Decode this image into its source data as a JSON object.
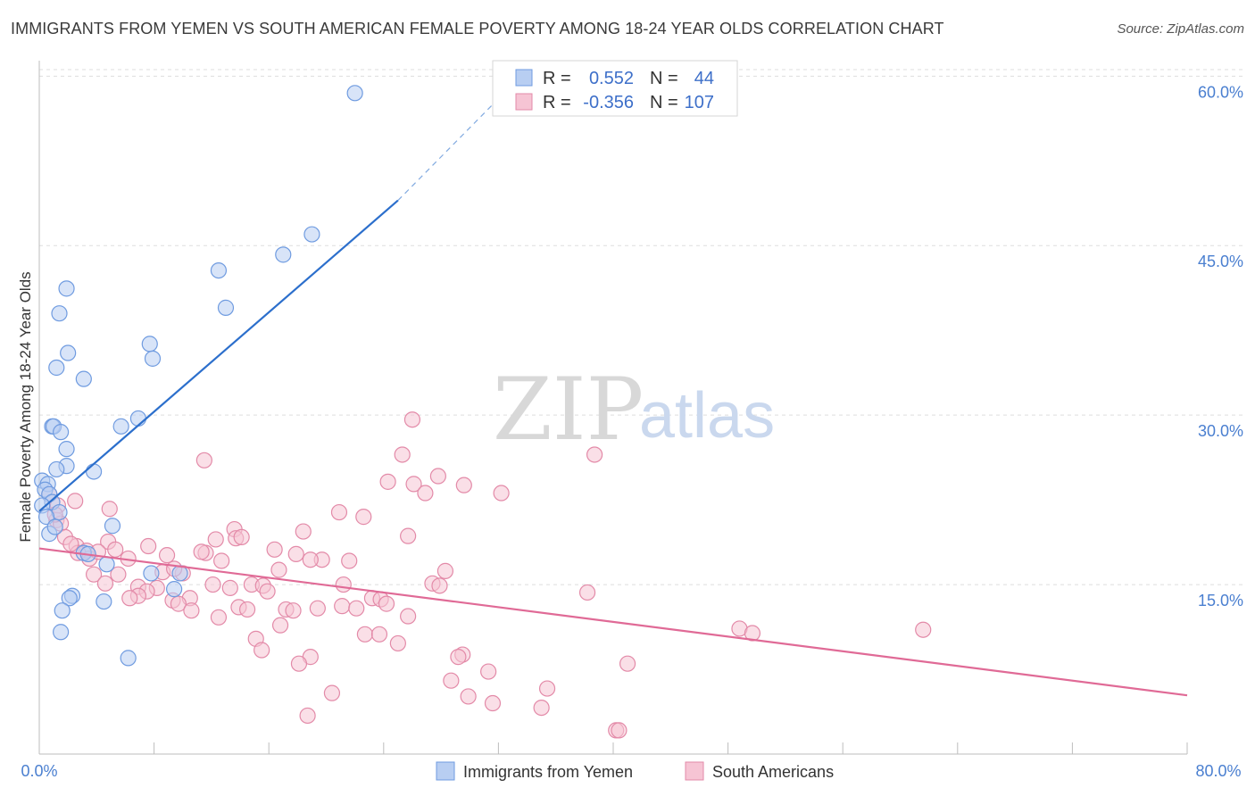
{
  "title": "IMMIGRANTS FROM YEMEN VS SOUTH AMERICAN FEMALE POVERTY AMONG 18-24 YEAR OLDS CORRELATION CHART",
  "source": "Source: ZipAtlas.com",
  "watermark": {
    "zip": "ZIP",
    "atlas": "atlas"
  },
  "colors": {
    "blue": "#6f9be0",
    "blue_fill": "#b8cef2",
    "blue_line": "#2c6fcc",
    "pink": "#e38aa8",
    "pink_fill": "#f6c4d4",
    "pink_line": "#e06a96",
    "axis_text": "#4a7fd0",
    "grid": "#dddddd"
  },
  "stats": [
    {
      "r_label": "R =",
      "r_value": "0.552",
      "n_label": "N =",
      "n_value": "44"
    },
    {
      "r_label": "R =",
      "r_value": "-0.356",
      "n_label": "N =",
      "n_value": "107"
    }
  ],
  "chart_data": {
    "type": "scatter",
    "title": "IMMIGRANTS FROM YEMEN VS SOUTH AMERICAN FEMALE POVERTY AMONG 18-24 YEAR OLDS CORRELATION CHART",
    "xlabel": "",
    "ylabel": "Female Poverty Among 18-24 Year Olds",
    "xlim": [
      0,
      80
    ],
    "ylim": [
      0,
      62
    ],
    "x_tick_labels": [
      "0.0%",
      "80.0%"
    ],
    "y_ticks": [
      15,
      30,
      45,
      60
    ],
    "y_tick_labels": [
      "15.0%",
      "30.0%",
      "45.0%",
      "60.0%"
    ],
    "grid": true,
    "legend": "bottom-center",
    "series": [
      {
        "name": "Immigrants from Yemen",
        "trend": {
          "x0": 0,
          "y0": 21.5,
          "x1": 25,
          "y1": 49,
          "dash_to_x": 32,
          "dash_to_y": 58
        },
        "points": [
          [
            22,
            58.5
          ],
          [
            19,
            46
          ],
          [
            17,
            44.2
          ],
          [
            12.5,
            42.8
          ],
          [
            13,
            39.5
          ],
          [
            1.9,
            41.2
          ],
          [
            1.4,
            39
          ],
          [
            7.7,
            36.3
          ],
          [
            7.9,
            35
          ],
          [
            2,
            35.5
          ],
          [
            1.2,
            34.2
          ],
          [
            3.1,
            33.2
          ],
          [
            6.9,
            29.7
          ],
          [
            5.7,
            29
          ],
          [
            0.9,
            29
          ],
          [
            1,
            29
          ],
          [
            1.5,
            28.5
          ],
          [
            1.9,
            27
          ],
          [
            1.9,
            25.5
          ],
          [
            1.2,
            25.2
          ],
          [
            3.8,
            25
          ],
          [
            0.2,
            24.2
          ],
          [
            0.6,
            23.9
          ],
          [
            0.4,
            23.4
          ],
          [
            0.7,
            23
          ],
          [
            0.9,
            22.3
          ],
          [
            0.2,
            22
          ],
          [
            1.4,
            21.4
          ],
          [
            0.5,
            21
          ],
          [
            5.1,
            20.2
          ],
          [
            0.7,
            19.5
          ],
          [
            4.7,
            16.8
          ],
          [
            7.8,
            16
          ],
          [
            9.8,
            16
          ],
          [
            2.3,
            14
          ],
          [
            2.1,
            13.8
          ],
          [
            4.5,
            13.5
          ],
          [
            9.4,
            14.6
          ],
          [
            1.6,
            12.7
          ],
          [
            1.5,
            10.8
          ],
          [
            6.2,
            8.5
          ],
          [
            3.1,
            17.8
          ],
          [
            3.4,
            17.7
          ],
          [
            1.1,
            20.1
          ]
        ]
      },
      {
        "name": "South Americans",
        "trend": {
          "x0": 0,
          "y0": 18.2,
          "x1": 80,
          "y1": 5.2
        },
        "points": [
          [
            26,
            29.6
          ],
          [
            38.7,
            26.5
          ],
          [
            25.3,
            26.5
          ],
          [
            11.5,
            26
          ],
          [
            27.8,
            24.6
          ],
          [
            24.3,
            24.1
          ],
          [
            26.1,
            23.9
          ],
          [
            29.6,
            23.8
          ],
          [
            26.9,
            23.1
          ],
          [
            32.2,
            23.1
          ],
          [
            0.7,
            23
          ],
          [
            2.5,
            22.4
          ],
          [
            1.3,
            22
          ],
          [
            4.9,
            21.7
          ],
          [
            20.9,
            21.4
          ],
          [
            22.6,
            21
          ],
          [
            1.2,
            20.7
          ],
          [
            1.5,
            20.4
          ],
          [
            13.6,
            19.9
          ],
          [
            18.4,
            19.7
          ],
          [
            25.7,
            19.3
          ],
          [
            12.3,
            19
          ],
          [
            13.7,
            19.1
          ],
          [
            1.8,
            19.2
          ],
          [
            4.8,
            18.8
          ],
          [
            2.6,
            18.4
          ],
          [
            7.6,
            18.4
          ],
          [
            5.3,
            18.1
          ],
          [
            16.4,
            18.1
          ],
          [
            3.3,
            18
          ],
          [
            2.7,
            17.8
          ],
          [
            11.6,
            17.8
          ],
          [
            17.9,
            17.7
          ],
          [
            8.9,
            17.6
          ],
          [
            3.5,
            17.3
          ],
          [
            6.2,
            17.3
          ],
          [
            12.7,
            17.1
          ],
          [
            19.7,
            17.2
          ],
          [
            21.6,
            17.1
          ],
          [
            16.7,
            16.3
          ],
          [
            28.3,
            16.2
          ],
          [
            8.6,
            16.1
          ],
          [
            10,
            16
          ],
          [
            5.5,
            15.9
          ],
          [
            3.8,
            15.9
          ],
          [
            4.6,
            15.1
          ],
          [
            12.1,
            15
          ],
          [
            14.8,
            15
          ],
          [
            15.6,
            14.9
          ],
          [
            21.2,
            15
          ],
          [
            27.4,
            15.1
          ],
          [
            27.9,
            14.9
          ],
          [
            6.9,
            14.8
          ],
          [
            8.2,
            14.7
          ],
          [
            7.5,
            14.4
          ],
          [
            15.9,
            14.4
          ],
          [
            38.2,
            14.3
          ],
          [
            6.9,
            14
          ],
          [
            6.3,
            13.8
          ],
          [
            10.5,
            13.8
          ],
          [
            9.3,
            13.6
          ],
          [
            9.7,
            13.3
          ],
          [
            23.2,
            13.8
          ],
          [
            23.8,
            13.7
          ],
          [
            24.2,
            13.3
          ],
          [
            21.1,
            13.1
          ],
          [
            19.4,
            12.9
          ],
          [
            13.9,
            13
          ],
          [
            17.2,
            12.8
          ],
          [
            22.1,
            12.9
          ],
          [
            14.5,
            12.8
          ],
          [
            25.7,
            12.2
          ],
          [
            12.5,
            12.1
          ],
          [
            10.6,
            12.7
          ],
          [
            16.8,
            11.4
          ],
          [
            48.8,
            11.1
          ],
          [
            49.7,
            10.7
          ],
          [
            61.6,
            11
          ],
          [
            22.7,
            10.6
          ],
          [
            23.7,
            10.6
          ],
          [
            15.1,
            10.2
          ],
          [
            25,
            9.8
          ],
          [
            15.5,
            9.2
          ],
          [
            29.5,
            8.8
          ],
          [
            29.2,
            8.6
          ],
          [
            18.9,
            8.6
          ],
          [
            18.1,
            8
          ],
          [
            41,
            8
          ],
          [
            31.3,
            7.3
          ],
          [
            28.7,
            6.5
          ],
          [
            35.4,
            5.8
          ],
          [
            20.4,
            5.4
          ],
          [
            29.9,
            5.1
          ],
          [
            31.6,
            4.5
          ],
          [
            35,
            4.1
          ],
          [
            18.7,
            3.4
          ],
          [
            40.2,
            2.1
          ],
          [
            40.4,
            2.1
          ],
          [
            1.1,
            21.2
          ],
          [
            2.2,
            18.6
          ],
          [
            4.1,
            17.9
          ],
          [
            9.4,
            16.4
          ],
          [
            11.3,
            17.9
          ],
          [
            14.1,
            19.2
          ],
          [
            13.3,
            14.7
          ],
          [
            17.7,
            12.7
          ],
          [
            18.9,
            17.2
          ]
        ]
      }
    ]
  }
}
